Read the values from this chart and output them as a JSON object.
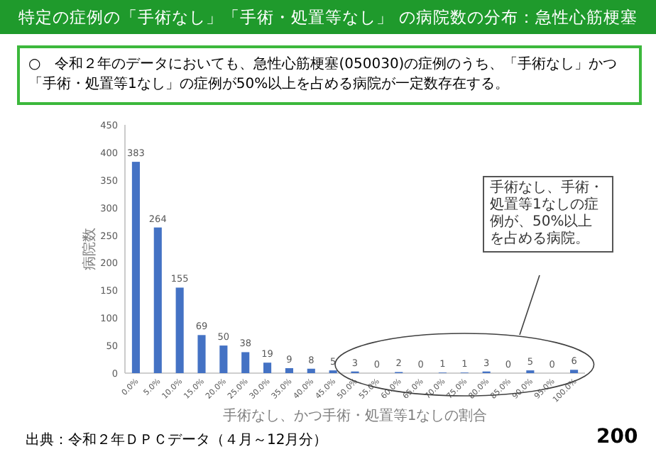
{
  "chart_data": {
    "type": "bar",
    "title": "特定の症例の「手術なし」「手術・処置等なし」 の病院数の分布：急性心筋梗塞",
    "subtitle": "○　令和２年のデータにおいても、急性心筋梗塞(050030)の症例のうち、「手術なし」かつ「手術・処置等1なし」の症例が50%以上を占める病院が一定数存在する。",
    "xlabel": "手術なし、かつ手術・処置等1なしの割合",
    "ylabel": "病院数",
    "categories": [
      "0.0%",
      "5.0%",
      "10.0%",
      "15.0%",
      "20.0%",
      "25.0%",
      "30.0%",
      "35.0%",
      "40.0%",
      "45.0%",
      "50.0%",
      "55.0%",
      "60.0%",
      "65.0%",
      "70.0%",
      "75.0%",
      "80.0%",
      "85.0%",
      "90.0%",
      "95.0%",
      "100.0%"
    ],
    "values": [
      383,
      264,
      155,
      69,
      50,
      38,
      19,
      9,
      8,
      5,
      3,
      0,
      2,
      0,
      1,
      1,
      3,
      0,
      5,
      0,
      6
    ],
    "color": "#4472c4",
    "ylim": [
      0,
      450
    ],
    "yticks": [
      0,
      50,
      100,
      150,
      200,
      250,
      300,
      350,
      400,
      450
    ],
    "data_labels": true,
    "grid": false,
    "annotations": [
      "手術なし、手術・処置等1なしの症例が、50%以上を占める病院。",
      "出典：令和２年ＤＰＣデータ（４月～12月分）",
      "200"
    ]
  }
}
